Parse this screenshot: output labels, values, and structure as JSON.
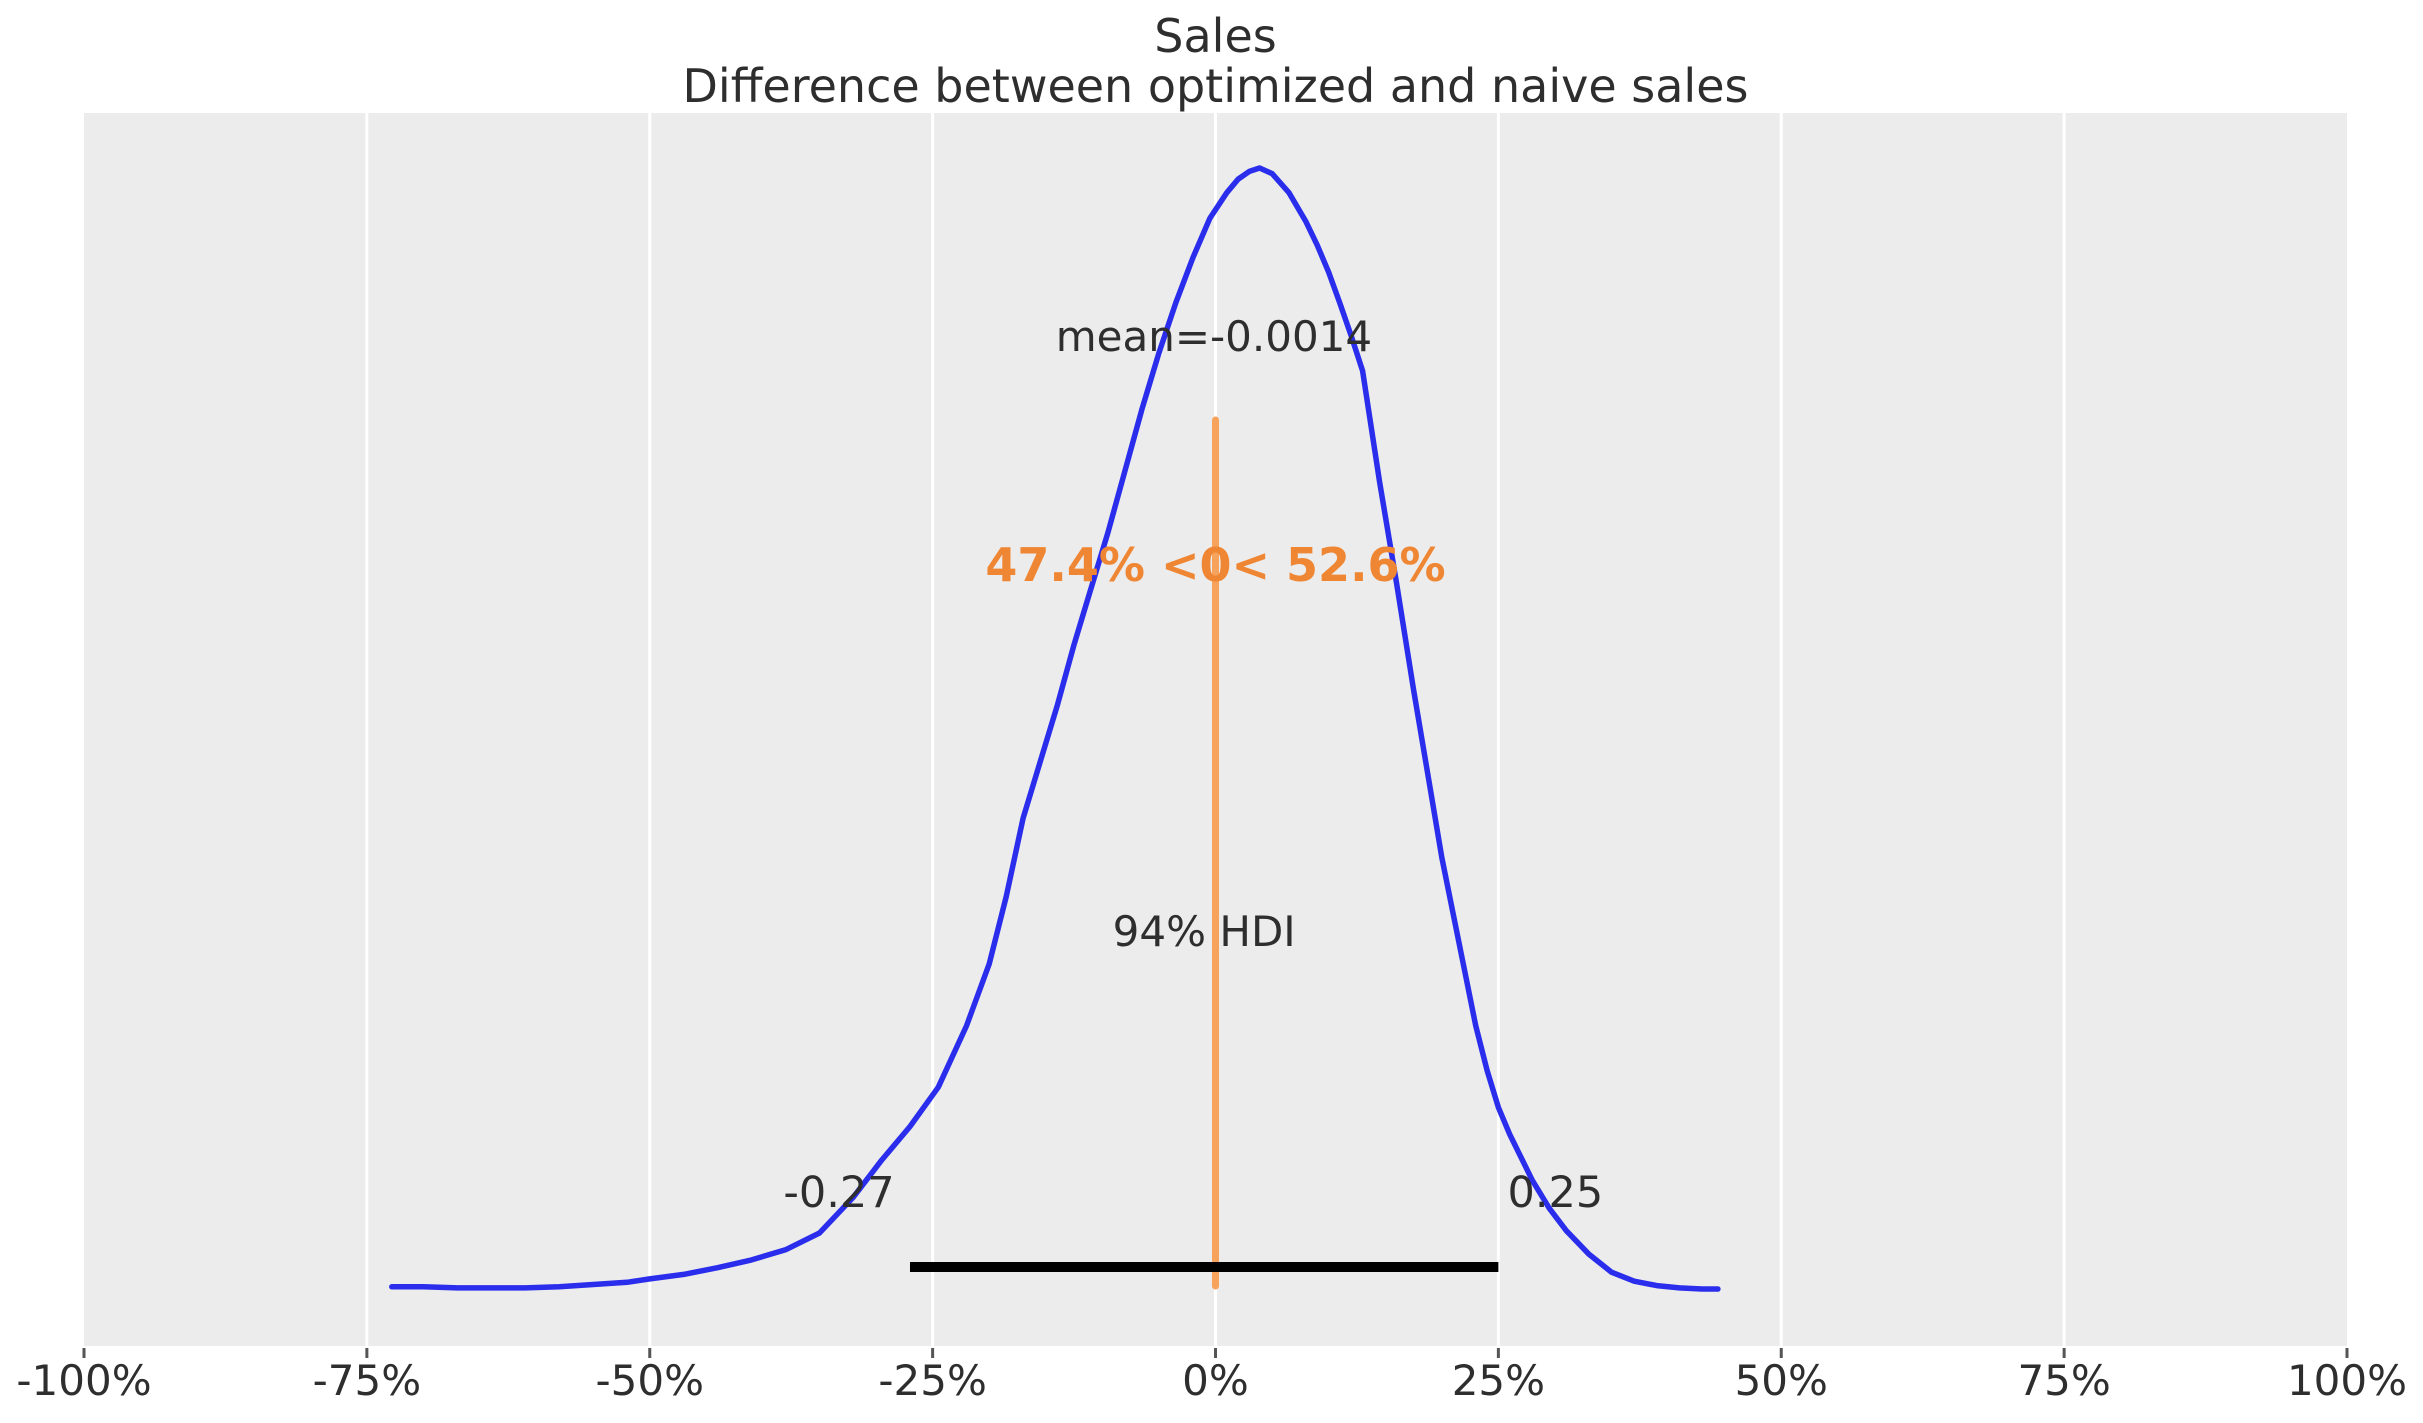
{
  "title": {
    "line1": "Sales",
    "line2": "Difference between optimized and naive sales"
  },
  "chart_data": {
    "type": "line",
    "subtype": "posterior_density_kde",
    "title": "Sales",
    "subtitle": "Difference between optimized and naive sales",
    "xlabel": "",
    "ylabel": "",
    "x_unit": "percent",
    "xlim": [
      -100,
      100
    ],
    "grid": "vertical white gridlines on gray panel",
    "legend": "none",
    "x_axis": {
      "tick_values": [
        -100,
        -75,
        -50,
        -25,
        0,
        25,
        50,
        75,
        100
      ],
      "tick_labels": [
        "-100%",
        "-75%",
        "-50%",
        "-25%",
        "0%",
        "25%",
        "50%",
        "75%",
        "100%"
      ]
    },
    "kde": {
      "x_percent": [
        -72.8,
        -70,
        -67,
        -64,
        -61,
        -58,
        -55,
        -52,
        -50,
        -47,
        -44,
        -41,
        -38,
        -35,
        -32,
        -29.5,
        -27,
        -24.5,
        -22,
        -20,
        -18.5,
        -17,
        -15.5,
        -14,
        -12.5,
        -11,
        -9.5,
        -8,
        -6.5,
        -5,
        -3.5,
        -2,
        -0.5,
        1,
        2,
        3,
        3.9,
        5,
        6.5,
        8,
        9,
        10,
        11,
        12,
        13,
        14.5,
        16,
        17.5,
        19,
        20,
        21,
        22,
        23,
        24,
        25,
        26,
        28,
        29.5,
        31,
        33,
        35,
        37,
        39,
        41,
        43,
        44.4
      ],
      "density_relative": [
        0.002,
        0.002,
        0.001,
        0.001,
        0.001,
        0.002,
        0.004,
        0.006,
        0.009,
        0.013,
        0.019,
        0.026,
        0.035,
        0.05,
        0.082,
        0.115,
        0.145,
        0.18,
        0.235,
        0.29,
        0.35,
        0.42,
        0.47,
        0.52,
        0.575,
        0.625,
        0.675,
        0.73,
        0.785,
        0.835,
        0.88,
        0.92,
        0.955,
        0.978,
        0.99,
        0.997,
        1.0,
        0.995,
        0.978,
        0.952,
        0.931,
        0.907,
        0.879,
        0.85,
        0.819,
        0.72,
        0.63,
        0.535,
        0.445,
        0.385,
        0.335,
        0.285,
        0.235,
        0.195,
        0.162,
        0.138,
        0.097,
        0.072,
        0.052,
        0.031,
        0.015,
        0.007,
        0.003,
        0.001,
        0.0,
        0.0
      ]
    },
    "mean": {
      "label": "mean=-0.0014",
      "value": -0.0014
    },
    "ref_val": {
      "label": "47.4% <0< 52.6%",
      "value": 0,
      "percent_below": 47.4,
      "percent_above": 52.6
    },
    "hdi": {
      "label": "94% HDI",
      "probability": 0.94,
      "lower": -0.27,
      "upper": 0.25,
      "lower_label": "-0.27",
      "upper_label": "0.25"
    },
    "colors": {
      "curve": "#2a2eec",
      "ref_line": "#f7a35c",
      "ref_text": "#ef8633",
      "hdi_line": "#000000",
      "plot_background": "#ececec",
      "gridline": "#ffffff",
      "text": "#2e2e2e",
      "tick_mark": "#555555",
      "figure_background": "#ffffff"
    }
  }
}
